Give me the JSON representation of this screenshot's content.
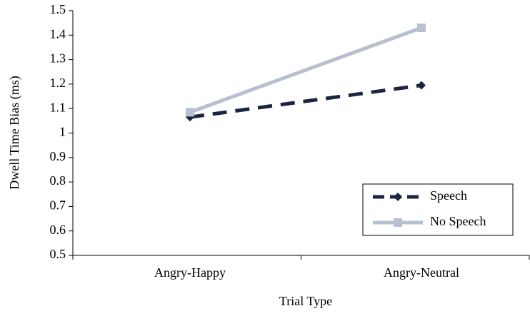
{
  "chart_data": {
    "type": "line",
    "x_label": "Trial Type",
    "y_label": "Dwell Time Bias (ms)",
    "categories": [
      "Angry-Happy",
      "Angry-Neutral"
    ],
    "series": [
      {
        "name": "Speech",
        "color": "#1c2540",
        "values": [
          1.065,
          1.195
        ]
      },
      {
        "name": "No Speech",
        "color": "#b8c0d0",
        "values": [
          1.085,
          1.43
        ]
      }
    ],
    "ylim": [
      0.5,
      1.5
    ],
    "yticks": [
      0.5,
      0.6,
      0.7,
      0.8,
      0.9,
      1,
      1.1,
      1.2,
      1.3,
      1.4,
      1.5
    ],
    "legend": "lower right"
  }
}
